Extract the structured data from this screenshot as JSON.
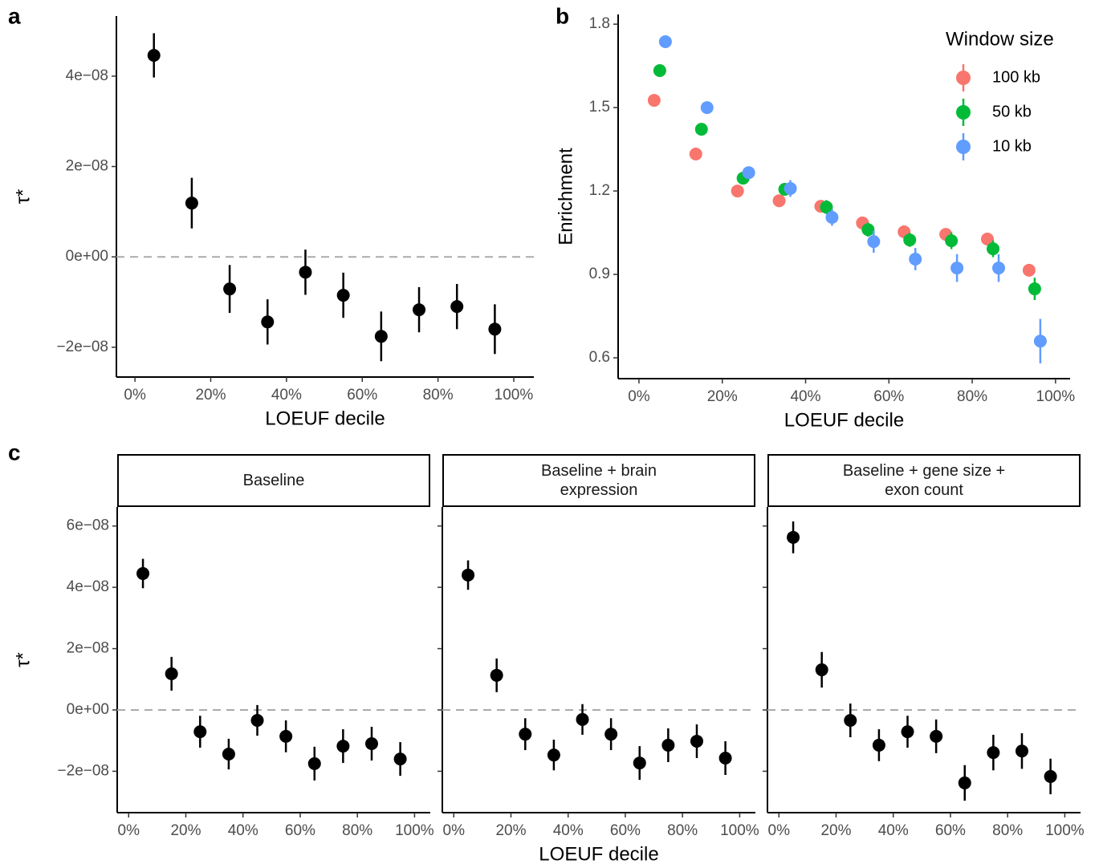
{
  "chart_data": [
    {
      "type": "dot",
      "panel_label": "a",
      "x_label": "LOEUF decile",
      "y_label": "τ*",
      "color": "#000000",
      "x": [
        5,
        15,
        25,
        35,
        45,
        55,
        65,
        75,
        85,
        95
      ],
      "values": [
        4.46e-08,
        1.19e-08,
        -7.1e-09,
        -1.44e-08,
        -3.4e-09,
        -8.5e-09,
        -1.76e-08,
        -1.17e-08,
        -1.1e-08,
        -1.6e-08
      ],
      "errors": [
        4.9e-09,
        5.6e-09,
        5.3e-09,
        5e-09,
        5e-09,
        5e-09,
        5.5e-09,
        5e-09,
        5e-09,
        5.5e-09
      ],
      "reference_line": 0,
      "xlim": [
        -4.9,
        105.3
      ],
      "ylim": [
        -2.66e-08,
        5.33e-08
      ],
      "xticks": [
        {
          "value": 0,
          "label": "0%"
        },
        {
          "value": 20,
          "label": "20%"
        },
        {
          "value": 40,
          "label": "40%"
        },
        {
          "value": 60,
          "label": "60%"
        },
        {
          "value": 80,
          "label": "80%"
        },
        {
          "value": 100,
          "label": "100%"
        }
      ],
      "yticks": [
        {
          "value": -2e-08,
          "label": "−2e−08"
        },
        {
          "value": 0,
          "label": "0e+00"
        },
        {
          "value": 2e-08,
          "label": "2e−08"
        },
        {
          "value": 4e-08,
          "label": "4e−08"
        }
      ]
    },
    {
      "type": "dot",
      "panel_label": "b",
      "x_label": "LOEUF decile",
      "y_label": "Enrichment",
      "legend_title": "Window size",
      "legend": "top-right",
      "x": [
        5,
        15,
        25,
        35,
        45,
        55,
        65,
        75,
        85,
        95
      ],
      "series": [
        {
          "name": "100 kb",
          "color": "#f8766d",
          "values": [
            1.526,
            1.333,
            1.2,
            1.165,
            1.145,
            1.085,
            1.053,
            1.044,
            1.027,
            0.915
          ],
          "errors": [
            0.01,
            0.01,
            0.01,
            0.01,
            0.01,
            0.015,
            0.015,
            0.02,
            0.02,
            0.02
          ]
        },
        {
          "name": "50 kb",
          "color": "#00ba38",
          "values": [
            1.633,
            1.422,
            1.246,
            1.206,
            1.142,
            1.061,
            1.024,
            1.021,
            0.992,
            0.848
          ],
          "errors": [
            0.015,
            0.02,
            0.02,
            0.02,
            0.025,
            0.025,
            0.025,
            0.03,
            0.03,
            0.04
          ]
        },
        {
          "name": "10 kb",
          "color": "#619cff",
          "values": [
            1.737,
            1.5,
            1.266,
            1.209,
            1.105,
            1.018,
            0.955,
            0.923,
            0.923,
            0.66
          ],
          "errors": [
            0.02,
            0.02,
            0.02,
            0.03,
            0.03,
            0.04,
            0.04,
            0.05,
            0.05,
            0.08
          ]
        }
      ],
      "xlim": [
        -5,
        103.5
      ],
      "ylim": [
        0.525,
        1.835
      ],
      "xticks": [
        {
          "value": 0,
          "label": "0%"
        },
        {
          "value": 20,
          "label": "20%"
        },
        {
          "value": 40,
          "label": "40%"
        },
        {
          "value": 60,
          "label": "60%"
        },
        {
          "value": 80,
          "label": "80%"
        },
        {
          "value": 100,
          "label": "100%"
        }
      ],
      "yticks": [
        {
          "value": 0.6,
          "label": "0.6"
        },
        {
          "value": 0.9,
          "label": "0.9"
        },
        {
          "value": 1.2,
          "label": "1.2"
        },
        {
          "value": 1.5,
          "label": "1.5"
        },
        {
          "value": 1.8,
          "label": "1.8"
        }
      ]
    },
    {
      "type": "facet-dot",
      "panel_label": "c",
      "x_label": "LOEUF decile",
      "y_label": "τ*",
      "color": "#000000",
      "reference_line": 0,
      "x": [
        5,
        15,
        25,
        35,
        45,
        55,
        65,
        75,
        85,
        95
      ],
      "facets": [
        {
          "title": "Baseline",
          "values": [
            4.45e-08,
            1.18e-08,
            -7.1e-09,
            -1.44e-08,
            -3.4e-09,
            -8.6e-09,
            -1.75e-08,
            -1.18e-08,
            -1.1e-08,
            -1.6e-08
          ],
          "errors": [
            4.8e-09,
            5.5e-09,
            5.2e-09,
            5e-09,
            5e-09,
            5.2e-09,
            5.5e-09,
            5.5e-09,
            5.5e-09,
            5.5e-09
          ]
        },
        {
          "title": "Baseline + brain expression",
          "values": [
            4.4e-08,
            1.13e-08,
            -7.9e-09,
            -1.47e-08,
            -3.1e-09,
            -7.9e-09,
            -1.73e-08,
            -1.15e-08,
            -1.02e-08,
            -1.57e-08
          ],
          "errors": [
            4.8e-09,
            5.5e-09,
            5.2e-09,
            5e-09,
            5e-09,
            5.2e-09,
            5.5e-09,
            5.5e-09,
            5.5e-09,
            5.5e-09
          ]
        },
        {
          "title": "Baseline + gene size + exon count",
          "values": [
            5.63e-08,
            1.31e-08,
            -3.4e-09,
            -1.15e-08,
            -7.1e-09,
            -8.6e-09,
            -2.38e-08,
            -1.39e-08,
            -1.34e-08,
            -2.17e-08
          ],
          "errors": [
            5.2e-09,
            5.8e-09,
            5.5e-09,
            5.2e-09,
            5.2e-09,
            5.5e-09,
            5.8e-09,
            5.8e-09,
            5.8e-09,
            5.8e-09
          ]
        }
      ],
      "xlim": [
        -4,
        105.5
      ],
      "ylim": [
        -3.35e-08,
        6.62e-08
      ],
      "xticks": [
        {
          "value": 0,
          "label": "0%"
        },
        {
          "value": 20,
          "label": "20%"
        },
        {
          "value": 40,
          "label": "40%"
        },
        {
          "value": 60,
          "label": "60%"
        },
        {
          "value": 80,
          "label": "80%"
        },
        {
          "value": 100,
          "label": "100%"
        }
      ],
      "yticks": [
        {
          "value": -2e-08,
          "label": "−2e−08"
        },
        {
          "value": 0,
          "label": "0e+00"
        },
        {
          "value": 2e-08,
          "label": "2e−08"
        },
        {
          "value": 4e-08,
          "label": "4e−08"
        },
        {
          "value": 6e-08,
          "label": "6e−08"
        }
      ]
    }
  ]
}
